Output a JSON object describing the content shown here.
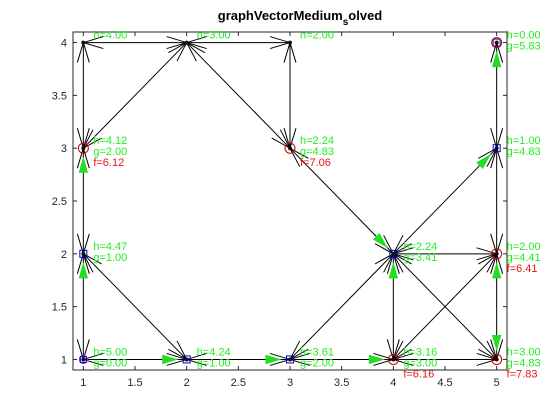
{
  "chart_data": {
    "type": "scatter",
    "title_main": "graphVectorMedium",
    "title_sub": "s",
    "title_end": "olved",
    "xlim": [
      0.9,
      5.1
    ],
    "ylim": [
      0.9,
      4.1
    ],
    "x_ticks": [
      "1",
      "1.5",
      "2",
      "2.5",
      "3",
      "3.5",
      "4",
      "4.5",
      "5"
    ],
    "x_tick_values": [
      1,
      1.5,
      2,
      2.5,
      3,
      3.5,
      4,
      4.5,
      5
    ],
    "y_ticks": [
      "1",
      "1.5",
      "2",
      "2.5",
      "3",
      "3.5",
      "4"
    ],
    "y_tick_values": [
      1,
      1.5,
      2,
      2.5,
      3,
      3.5,
      4
    ],
    "grid": false,
    "colors": {
      "h": "#22ee22",
      "g": "#22ee22",
      "f": "#ee1111",
      "edge": "#000000",
      "path": "#22dd22",
      "square": "#0000cc",
      "circle": "#cc0000",
      "start": "#cc00cc"
    },
    "nodes": [
      {
        "id": "n11",
        "x": 1,
        "y": 1,
        "marker": "start",
        "h": "h=5.00",
        "g": "g=0.00",
        "f": ""
      },
      {
        "id": "n21",
        "x": 2,
        "y": 1,
        "marker": "square",
        "h": "h=4.24",
        "g": "g=1.00",
        "f": ""
      },
      {
        "id": "n31",
        "x": 3,
        "y": 1,
        "marker": "square",
        "h": "h=3.61",
        "g": "g=2.00",
        "f": ""
      },
      {
        "id": "n41",
        "x": 4,
        "y": 1,
        "marker": "circle",
        "h": "h=3.16",
        "g": "g=3.00",
        "f": "f=6.16"
      },
      {
        "id": "n51",
        "x": 5,
        "y": 1,
        "marker": "circle",
        "h": "h=3.00",
        "g": "g=4.83",
        "f": "f=7.83"
      },
      {
        "id": "n12",
        "x": 1,
        "y": 2,
        "marker": "square",
        "h": "h=4.47",
        "g": "g=1.00",
        "f": ""
      },
      {
        "id": "n42",
        "x": 4,
        "y": 2,
        "marker": "square",
        "h": "h=2.24",
        "g": "g=3.41",
        "f": ""
      },
      {
        "id": "n52",
        "x": 5,
        "y": 2,
        "marker": "circle",
        "h": "h=2.00",
        "g": "g=4.41",
        "f": "f=6.41"
      },
      {
        "id": "n13",
        "x": 1,
        "y": 3,
        "marker": "circle",
        "h": "h=4.12",
        "g": "g=2.00",
        "f": "f=6.12"
      },
      {
        "id": "n33",
        "x": 3,
        "y": 3,
        "marker": "circle",
        "h": "h=2.24",
        "g": "g=4.83",
        "f": "f=7.06"
      },
      {
        "id": "n53",
        "x": 5,
        "y": 3,
        "marker": "square",
        "h": "h=1.00",
        "g": "g=4.83",
        "f": ""
      },
      {
        "id": "n14",
        "x": 1,
        "y": 4,
        "marker": "none",
        "h": "h=4.00",
        "g": "",
        "f": ""
      },
      {
        "id": "n24",
        "x": 2,
        "y": 4,
        "marker": "none",
        "h": "h=3.00",
        "g": "",
        "f": ""
      },
      {
        "id": "n34",
        "x": 3,
        "y": 4,
        "marker": "none",
        "h": "h=2.00",
        "g": "",
        "f": ""
      },
      {
        "id": "n54",
        "x": 5,
        "y": 4,
        "marker": "goal",
        "h": "h=0.00",
        "g": "g=5.83",
        "f": ""
      }
    ],
    "edges": [
      [
        1,
        1,
        2,
        1
      ],
      [
        2,
        1,
        3,
        1
      ],
      [
        3,
        1,
        4,
        1
      ],
      [
        4,
        1,
        5,
        1
      ],
      [
        1,
        1,
        1,
        2
      ],
      [
        1,
        2,
        1,
        3
      ],
      [
        1,
        3,
        1,
        4
      ],
      [
        1,
        2,
        2,
        1
      ],
      [
        1,
        4,
        2,
        4
      ],
      [
        2,
        4,
        3,
        4
      ],
      [
        3,
        4,
        3,
        3
      ],
      [
        2,
        4,
        1,
        3
      ],
      [
        2,
        4,
        3,
        3
      ],
      [
        3,
        3,
        4,
        2
      ],
      [
        3,
        1,
        4,
        2
      ],
      [
        4,
        2,
        4,
        1
      ],
      [
        4,
        2,
        5,
        2
      ],
      [
        4,
        2,
        5,
        1
      ],
      [
        4,
        2,
        5,
        3
      ],
      [
        4,
        1,
        5,
        2
      ],
      [
        5,
        1,
        5,
        2
      ],
      [
        5,
        2,
        5,
        3
      ],
      [
        5,
        3,
        5,
        4
      ]
    ],
    "path_arrows": [
      [
        1,
        1,
        1,
        2
      ],
      [
        1,
        2,
        1,
        3
      ],
      [
        3,
        3,
        4,
        2
      ],
      [
        4,
        1,
        4,
        2
      ],
      [
        4,
        2,
        5,
        3
      ],
      [
        5,
        3,
        5,
        4
      ],
      [
        3,
        1,
        4,
        1
      ],
      [
        2,
        1,
        3,
        1
      ],
      [
        1,
        1,
        2,
        1
      ],
      [
        5,
        2,
        5,
        1
      ],
      [
        5,
        1,
        5,
        2
      ]
    ]
  }
}
